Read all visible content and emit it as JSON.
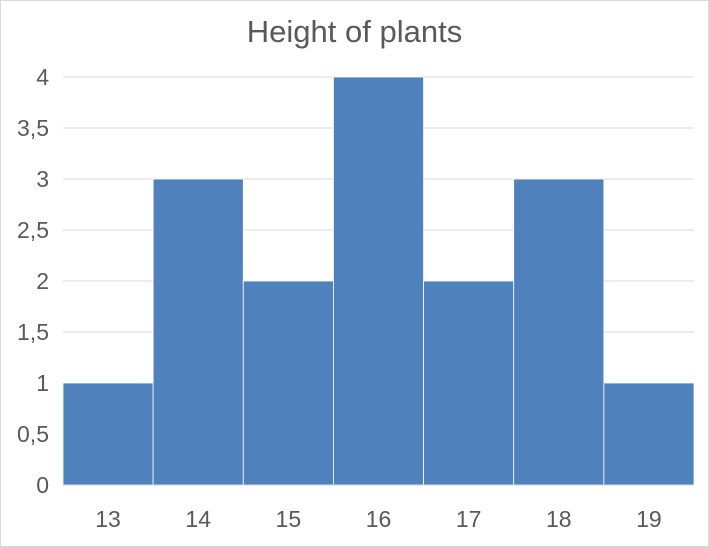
{
  "chart_data": {
    "type": "bar",
    "title": "Height of plants",
    "xlabel": "",
    "ylabel": "",
    "categories": [
      "13",
      "14",
      "15",
      "16",
      "17",
      "18",
      "19"
    ],
    "values": [
      1,
      3,
      2,
      4,
      2,
      3,
      1
    ],
    "ylim": [
      0,
      4
    ],
    "y_ticks": [
      "0",
      "0,5",
      "1",
      "1,5",
      "2",
      "2,5",
      "3",
      "3,5",
      "4"
    ],
    "grid": true,
    "legend": "none",
    "bar_color": "#4f81bd",
    "gridline_color": "#d9d9d9",
    "text_color": "#595959"
  }
}
